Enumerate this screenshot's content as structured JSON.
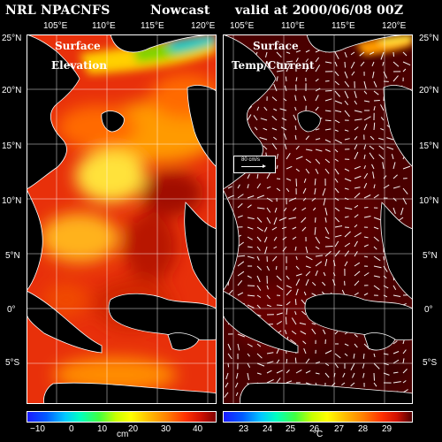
{
  "header": {
    "left": "NRL NPACNFS",
    "center": "Nowcast",
    "right": "valid at 2000/06/08 00Z"
  },
  "panels": {
    "left": {
      "label_line1": "Surface",
      "label_line2": "Elevation"
    },
    "right": {
      "label_line1": "Surface",
      "label_line2": "Temp/Current",
      "vector_legend": "80 cm/s"
    }
  },
  "axes": {
    "lon_ticks": [
      "105°E",
      "110°E",
      "115°E",
      "120°E"
    ],
    "lat_ticks_left": [
      "25°N",
      "20°N",
      "15°N",
      "10°N",
      "5°N",
      "0°",
      "5°S"
    ],
    "lat_ticks_right": [
      "25°N",
      "20°N",
      "15°N",
      "10°N",
      "5°N",
      "0°",
      "5°S"
    ]
  },
  "colorbars": {
    "left": {
      "ticks": [
        "−10",
        "0",
        "10",
        "20",
        "30",
        "40"
      ],
      "unit": "cm"
    },
    "right": {
      "ticks": [
        "23",
        "24",
        "25",
        "26",
        "27",
        "28",
        "29"
      ],
      "unit": "°C"
    }
  },
  "colors": {
    "background": "#000000",
    "land": "#000000",
    "coastline": "#ffffff"
  }
}
